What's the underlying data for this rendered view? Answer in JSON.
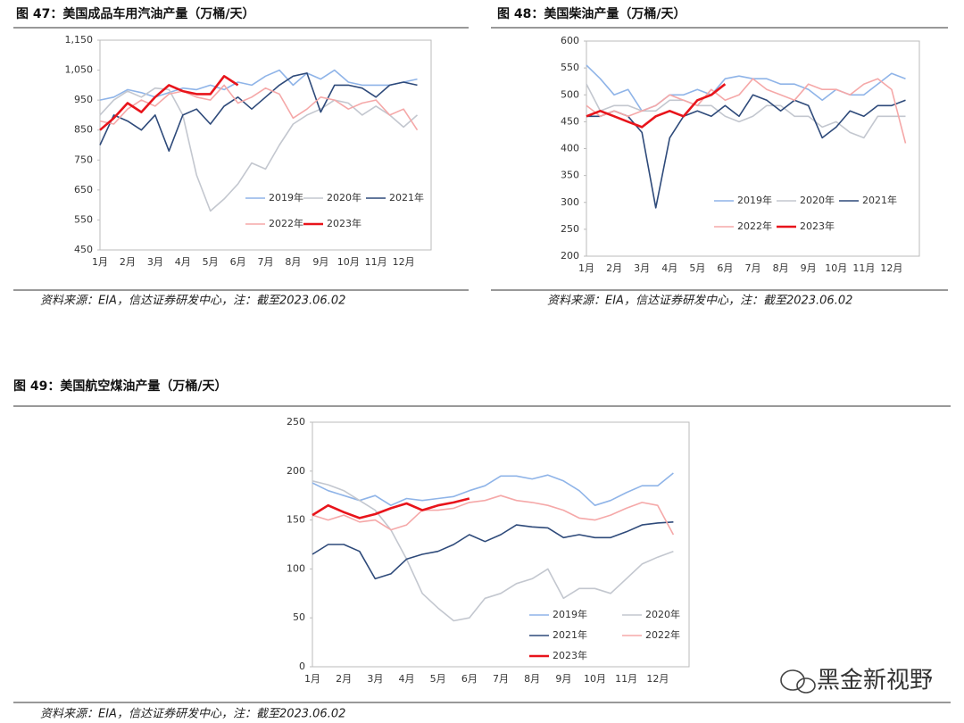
{
  "chart_data": [
    {
      "type": "line",
      "title": "图 47：美国成品车用汽油产量（万桶/天）",
      "source": "资料来源：EIA，信达证券研发中心，注：截至2023.06.02",
      "categories": [
        "1月",
        null,
        "2月",
        null,
        "3月",
        null,
        "4月",
        null,
        "5月",
        null,
        "6月",
        null,
        "7月",
        null,
        "8月",
        null,
        "9月",
        null,
        "10月",
        null,
        "11月",
        null,
        "12月",
        null
      ],
      "ylim": [
        450,
        1150
      ],
      "yticks": [
        450,
        550,
        650,
        750,
        850,
        950,
        {
          "value": 1050,
          "label": "1,050"
        },
        {
          "value": 1150,
          "label": "1,150"
        }
      ],
      "series": [
        {
          "name": "2019年",
          "color": "#8fb4e8",
          "values": [
            950,
            960,
            985,
            975,
            960,
            975,
            990,
            985,
            1000,
            985,
            1010,
            1000,
            1030,
            1050,
            1000,
            1040,
            1020,
            1050,
            1010,
            1000,
            1000,
            1000,
            1010,
            1020
          ]
        },
        {
          "name": "2020年",
          "color": "#c3c7cf",
          "values": [
            900,
            950,
            980,
            960,
            990,
            985,
            900,
            700,
            580,
            620,
            670,
            740,
            720,
            800,
            870,
            900,
            920,
            950,
            940,
            900,
            930,
            900,
            860,
            900
          ]
        },
        {
          "name": "2021年",
          "color": "#2e4a7a",
          "values": [
            800,
            900,
            880,
            850,
            900,
            780,
            900,
            920,
            870,
            930,
            960,
            920,
            960,
            1000,
            1030,
            1040,
            910,
            1000,
            1000,
            990,
            960,
            1000,
            1010,
            1000
          ]
        },
        {
          "name": "2022年",
          "color": "#f5a8a8",
          "values": [
            880,
            870,
            920,
            950,
            930,
            970,
            980,
            960,
            950,
            1000,
            940,
            960,
            990,
            970,
            890,
            920,
            960,
            950,
            920,
            940,
            950,
            900,
            920,
            850
          ]
        },
        {
          "name": "2023年",
          "color": "#e8141b",
          "values": [
            850,
            890,
            940,
            910,
            960,
            1000,
            980,
            970,
            970,
            1030,
            1000,
            null,
            null,
            null,
            null,
            null,
            null,
            null,
            null,
            null,
            null,
            null,
            null,
            null
          ]
        }
      ]
    },
    {
      "type": "line",
      "title": "图 48：美国柴油产量（万桶/天）",
      "source": "资料来源：EIA，信达证券研发中心，注：截至2023.06.02",
      "categories": [
        "1月",
        null,
        "2月",
        null,
        "3月",
        null,
        "4月",
        null,
        "5月",
        null,
        "6月",
        null,
        "7月",
        null,
        "8月",
        null,
        "9月",
        null,
        "10月",
        null,
        "11月",
        null,
        "12月",
        null
      ],
      "ylim": [
        200,
        600
      ],
      "yticks": [
        200,
        250,
        300,
        350,
        400,
        450,
        500,
        550,
        600
      ],
      "series": [
        {
          "name": "2019年",
          "color": "#8fb4e8",
          "values": [
            555,
            530,
            500,
            510,
            470,
            480,
            500,
            500,
            510,
            500,
            530,
            535,
            530,
            530,
            520,
            520,
            510,
            490,
            510,
            500,
            500,
            520,
            540,
            530
          ]
        },
        {
          "name": "2020年",
          "color": "#c3c7cf",
          "values": [
            520,
            470,
            480,
            480,
            470,
            470,
            490,
            490,
            480,
            480,
            460,
            450,
            460,
            480,
            480,
            460,
            460,
            440,
            450,
            430,
            420,
            460,
            460,
            460
          ]
        },
        {
          "name": "2021年",
          "color": "#2e4a7a",
          "values": [
            460,
            460,
            470,
            460,
            430,
            290,
            420,
            460,
            470,
            460,
            480,
            460,
            500,
            490,
            470,
            490,
            480,
            420,
            440,
            470,
            460,
            480,
            480,
            490
          ]
        },
        {
          "name": "2022年",
          "color": "#f5a8a8",
          "values": [
            480,
            460,
            470,
            460,
            470,
            480,
            500,
            490,
            480,
            510,
            490,
            500,
            530,
            510,
            500,
            490,
            520,
            510,
            510,
            500,
            520,
            530,
            510,
            410
          ]
        },
        {
          "name": "2023年",
          "color": "#e8141b",
          "values": [
            460,
            470,
            460,
            450,
            440,
            460,
            470,
            460,
            490,
            500,
            520,
            null,
            null,
            null,
            null,
            null,
            null,
            null,
            null,
            null,
            null,
            null,
            null,
            null
          ]
        }
      ]
    },
    {
      "type": "line",
      "title": "图 49：美国航空煤油产量（万桶/天）",
      "source": "资料来源：EIA，信达证券研发中心，注：截至2023.06.02",
      "categories": [
        "1月",
        null,
        "2月",
        null,
        "3月",
        null,
        "4月",
        null,
        "5月",
        null,
        "6月",
        null,
        "7月",
        null,
        "8月",
        null,
        "9月",
        null,
        "10月",
        null,
        "11月",
        null,
        "12月",
        null
      ],
      "ylim": [
        0,
        250
      ],
      "yticks": [
        0,
        50,
        100,
        150,
        200,
        250
      ],
      "series": [
        {
          "name": "2019年",
          "color": "#8fb4e8",
          "values": [
            188,
            180,
            175,
            170,
            175,
            165,
            172,
            170,
            172,
            174,
            180,
            185,
            195,
            195,
            192,
            196,
            190,
            180,
            165,
            170,
            178,
            185,
            185,
            198
          ]
        },
        {
          "name": "2020年",
          "color": "#c3c7cf",
          "values": [
            190,
            186,
            180,
            170,
            160,
            140,
            110,
            75,
            60,
            47,
            50,
            70,
            75,
            85,
            90,
            100,
            70,
            80,
            80,
            75,
            90,
            105,
            112,
            118
          ]
        },
        {
          "name": "2021年",
          "color": "#2e4a7a",
          "values": [
            115,
            125,
            125,
            118,
            90,
            95,
            110,
            115,
            118,
            125,
            135,
            128,
            135,
            145,
            143,
            142,
            132,
            135,
            132,
            132,
            138,
            145,
            147,
            148
          ]
        },
        {
          "name": "2022年",
          "color": "#f5a8a8",
          "values": [
            155,
            150,
            155,
            148,
            150,
            140,
            145,
            160,
            160,
            162,
            168,
            170,
            175,
            170,
            168,
            165,
            160,
            152,
            150,
            155,
            162,
            168,
            165,
            135
          ]
        },
        {
          "name": "2023年",
          "color": "#e8141b",
          "values": [
            155,
            165,
            158,
            152,
            156,
            162,
            167,
            160,
            165,
            168,
            172,
            null,
            null,
            null,
            null,
            null,
            null,
            null,
            null,
            null,
            null,
            null,
            null,
            null
          ]
        }
      ]
    }
  ],
  "watermark": "黑金新视野"
}
